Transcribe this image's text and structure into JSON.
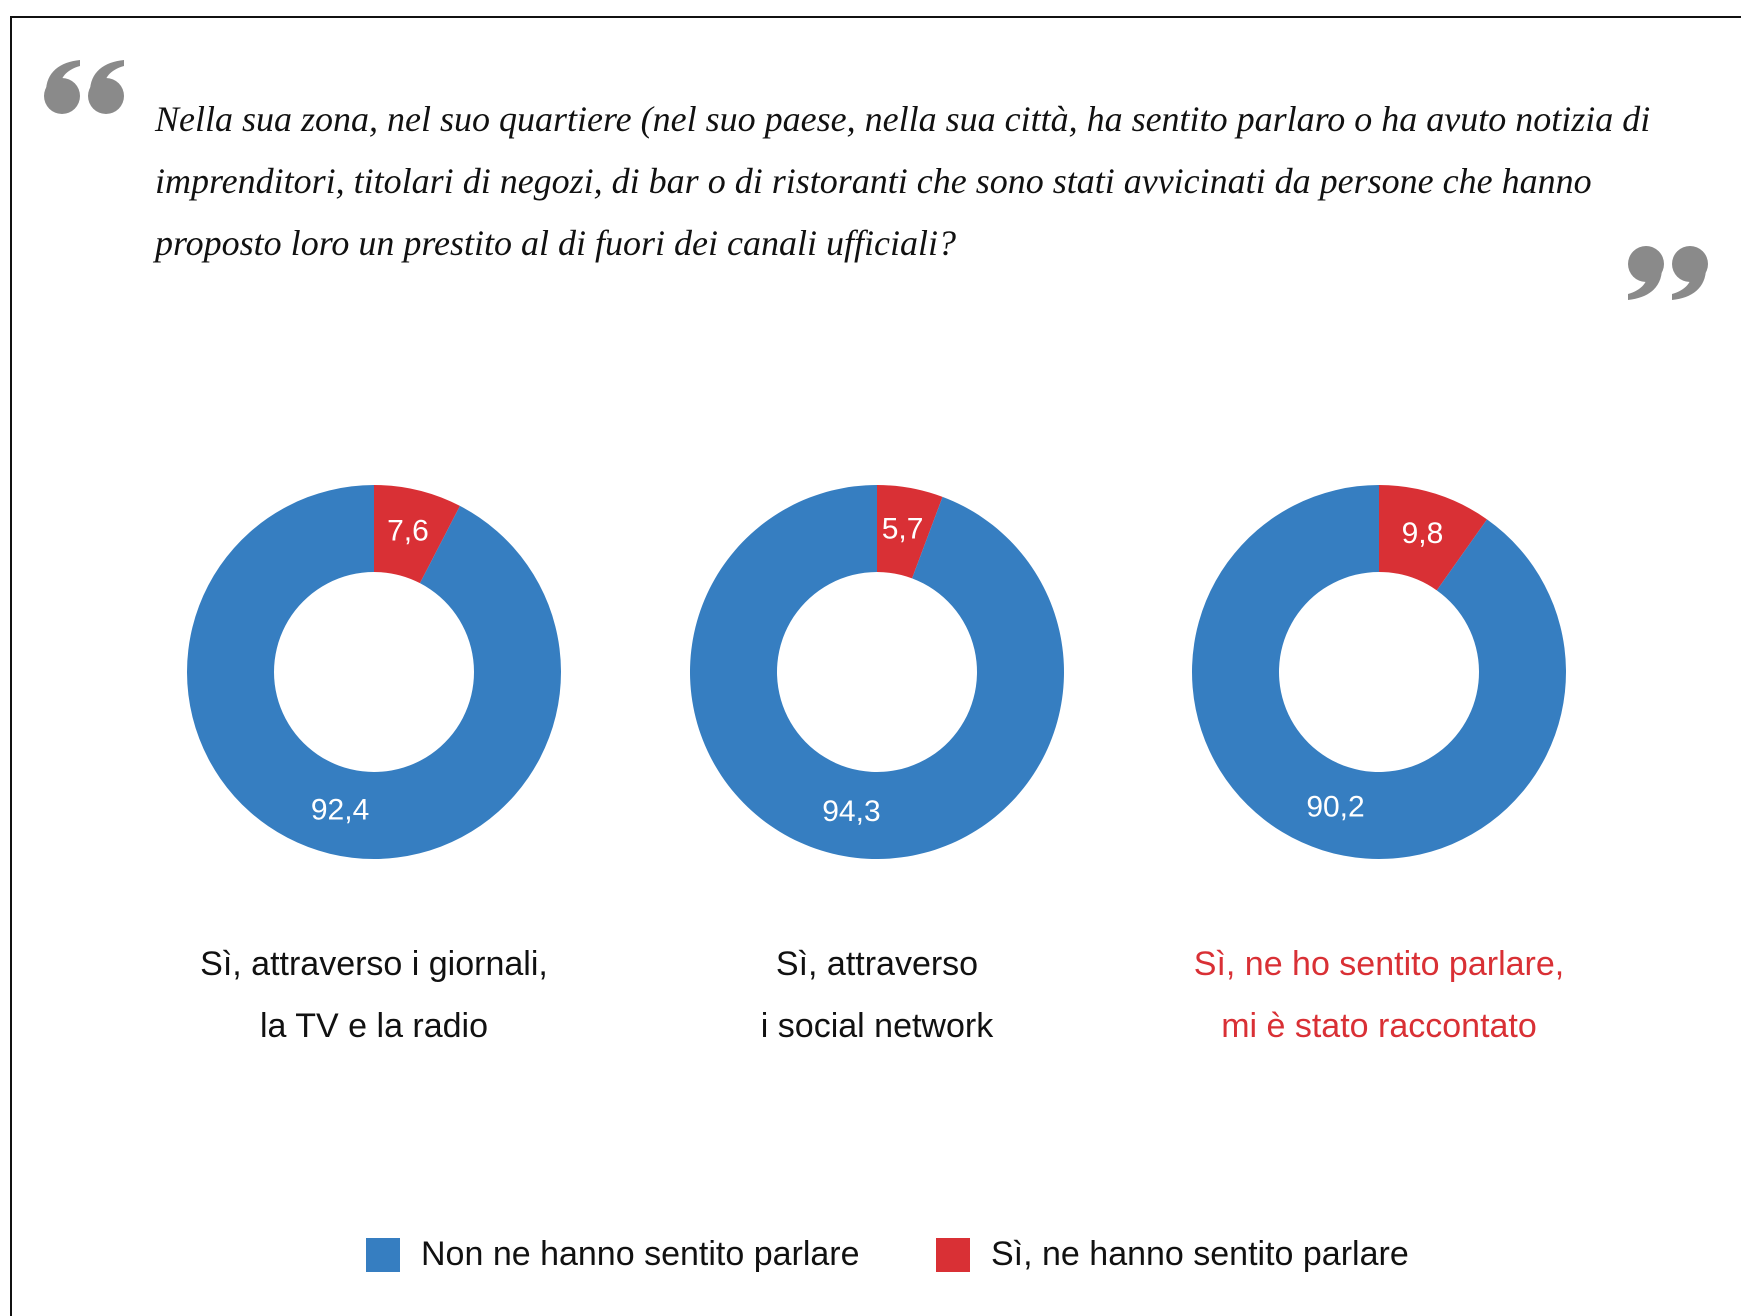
{
  "question": "Nella sua zona, nel suo quartiere (nel suo paese, nella sua città, ha sentito parlaro o ha avuto notizia di imprenditori, titolari di negozi, di bar o di ristoranti che sono stati avvicinati da persone che hanno proposto loro un prestito al di fuori dei canali ufficiali?",
  "legend": [
    {
      "name": "Non ne hanno sentito parlare",
      "color": "#367ec1"
    },
    {
      "name": "Sì, ne hanno sentito parlare",
      "color": "#d93035"
    }
  ],
  "chart_data": [
    {
      "type": "donut",
      "title": [
        "Sì, attraverso i giornali,",
        "la TV e la radio"
      ],
      "title_color": "#111111",
      "values": [
        92.4,
        7.6
      ],
      "value_labels": [
        "92,4",
        "7,6"
      ],
      "colors": [
        "#367ec1",
        "#d93035"
      ]
    },
    {
      "type": "donut",
      "title": [
        "Sì, attraverso",
        "i social network"
      ],
      "title_color": "#111111",
      "values": [
        94.3,
        5.7
      ],
      "value_labels": [
        "94,3",
        "5,7"
      ],
      "colors": [
        "#367ec1",
        "#d93035"
      ]
    },
    {
      "type": "donut",
      "title": [
        "Sì, ne ho sentito parlare,",
        "mi è stato raccontato"
      ],
      "title_color": "#d93035",
      "values": [
        90.2,
        9.8
      ],
      "value_labels": [
        "90,2",
        "9,8"
      ],
      "colors": [
        "#367ec1",
        "#d93035"
      ]
    }
  ]
}
